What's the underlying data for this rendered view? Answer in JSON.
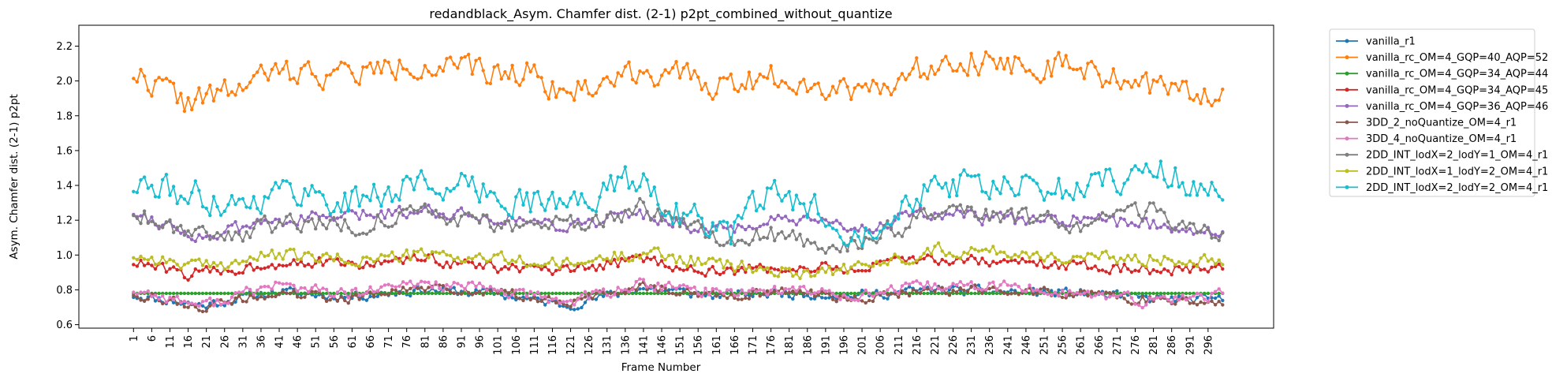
{
  "chart_data": {
    "type": "line",
    "title": "redandblack_Asym. Chamfer dist. (2-1) p2pt_combined_without_quantize",
    "xlabel": "Frame Number",
    "ylabel": "Asym. Chamfer dist. (2-1) p2pt",
    "x_range": [
      1,
      300
    ],
    "ylim": [
      0.6,
      2.3
    ],
    "yticks": [
      0.6,
      0.8,
      1.0,
      1.2,
      1.4,
      1.6,
      1.8,
      2.0,
      2.2
    ],
    "xticks": [
      1,
      6,
      11,
      16,
      21,
      26,
      31,
      36,
      41,
      46,
      51,
      56,
      61,
      66,
      71,
      76,
      81,
      86,
      91,
      96,
      101,
      106,
      111,
      116,
      121,
      126,
      131,
      136,
      141,
      146,
      151,
      156,
      161,
      166,
      171,
      176,
      181,
      186,
      191,
      196,
      201,
      206,
      211,
      216,
      221,
      226,
      231,
      236,
      241,
      246,
      251,
      256,
      261,
      266,
      271,
      276,
      281,
      286,
      291,
      296
    ],
    "grid": false,
    "legend_position": "outside-right",
    "series": [
      {
        "name": "vanilla_r1",
        "color": "#1f77b4",
        "base": [
          [
            1,
            0.77
          ],
          [
            20,
            0.71
          ],
          [
            40,
            0.79
          ],
          [
            60,
            0.76
          ],
          [
            80,
            0.8
          ],
          [
            100,
            0.78
          ],
          [
            120,
            0.71
          ],
          [
            140,
            0.81
          ],
          [
            160,
            0.77
          ],
          [
            180,
            0.78
          ],
          [
            200,
            0.77
          ],
          [
            220,
            0.8
          ],
          [
            240,
            0.79
          ],
          [
            260,
            0.78
          ],
          [
            280,
            0.75
          ],
          [
            300,
            0.74
          ]
        ],
        "noise": 0.025,
        "seed": 11
      },
      {
        "name": "vanilla_rc_OM=4_GQP=40_AQP=52",
        "color": "#ff7f0e",
        "base": [
          [
            1,
            2.05
          ],
          [
            10,
            1.95
          ],
          [
            15,
            1.88
          ],
          [
            25,
            1.92
          ],
          [
            40,
            2.05
          ],
          [
            60,
            2.04
          ],
          [
            80,
            2.1
          ],
          [
            100,
            2.04
          ],
          [
            110,
            2.06
          ],
          [
            120,
            1.92
          ],
          [
            140,
            2.07
          ],
          [
            160,
            1.98
          ],
          [
            180,
            2.03
          ],
          [
            195,
            1.95
          ],
          [
            210,
            2.0
          ],
          [
            225,
            2.14
          ],
          [
            240,
            2.1
          ],
          [
            260,
            2.07
          ],
          [
            280,
            1.97
          ],
          [
            290,
            1.92
          ],
          [
            300,
            1.95
          ]
        ],
        "noise": 0.07,
        "seed": 22
      },
      {
        "name": "vanilla_rc_OM=4_GQP=34_AQP=44",
        "color": "#2ca02c",
        "base": [
          [
            1,
            0.78
          ],
          [
            300,
            0.78
          ]
        ],
        "noise": 0.0,
        "seed": 33
      },
      {
        "name": "vanilla_rc_OM=4_GQP=34_AQP=45",
        "color": "#d62728",
        "base": [
          [
            1,
            0.96
          ],
          [
            15,
            0.89
          ],
          [
            30,
            0.92
          ],
          [
            45,
            0.97
          ],
          [
            60,
            0.94
          ],
          [
            80,
            0.98
          ],
          [
            100,
            0.93
          ],
          [
            120,
            0.9
          ],
          [
            140,
            0.98
          ],
          [
            160,
            0.9
          ],
          [
            180,
            0.93
          ],
          [
            200,
            0.92
          ],
          [
            220,
            0.98
          ],
          [
            240,
            0.96
          ],
          [
            260,
            0.94
          ],
          [
            280,
            0.92
          ],
          [
            300,
            0.92
          ]
        ],
        "noise": 0.03,
        "seed": 44
      },
      {
        "name": "vanilla_rc_OM=4_GQP=36_AQP=46",
        "color": "#9467bd",
        "base": [
          [
            1,
            1.25
          ],
          [
            20,
            1.1
          ],
          [
            40,
            1.2
          ],
          [
            60,
            1.22
          ],
          [
            80,
            1.26
          ],
          [
            100,
            1.22
          ],
          [
            120,
            1.17
          ],
          [
            140,
            1.24
          ],
          [
            160,
            1.14
          ],
          [
            180,
            1.2
          ],
          [
            200,
            1.15
          ],
          [
            220,
            1.24
          ],
          [
            240,
            1.2
          ],
          [
            260,
            1.2
          ],
          [
            280,
            1.18
          ],
          [
            300,
            1.13
          ]
        ],
        "noise": 0.035,
        "seed": 55
      },
      {
        "name": "3DD_2_noQuantize_OM=4_r1",
        "color": "#8c564b",
        "base": [
          [
            1,
            0.78
          ],
          [
            20,
            0.7
          ],
          [
            40,
            0.78
          ],
          [
            60,
            0.75
          ],
          [
            80,
            0.81
          ],
          [
            100,
            0.79
          ],
          [
            120,
            0.72
          ],
          [
            140,
            0.82
          ],
          [
            160,
            0.77
          ],
          [
            180,
            0.79
          ],
          [
            200,
            0.75
          ],
          [
            220,
            0.8
          ],
          [
            240,
            0.8
          ],
          [
            260,
            0.78
          ],
          [
            280,
            0.74
          ],
          [
            300,
            0.74
          ]
        ],
        "noise": 0.025,
        "seed": 66
      },
      {
        "name": "3DD_4_noQuantize_OM=4_r1",
        "color": "#e377c2",
        "base": [
          [
            1,
            0.8
          ],
          [
            20,
            0.71
          ],
          [
            40,
            0.83
          ],
          [
            60,
            0.77
          ],
          [
            80,
            0.84
          ],
          [
            100,
            0.8
          ],
          [
            120,
            0.73
          ],
          [
            140,
            0.83
          ],
          [
            160,
            0.79
          ],
          [
            180,
            0.8
          ],
          [
            200,
            0.77
          ],
          [
            220,
            0.82
          ],
          [
            240,
            0.82
          ],
          [
            260,
            0.78
          ],
          [
            280,
            0.73
          ],
          [
            300,
            0.78
          ]
        ],
        "noise": 0.03,
        "seed": 77
      },
      {
        "name": "2DD_INT_lodX=2_lodY=1_OM=4_r1",
        "color": "#7f7f7f",
        "base": [
          [
            1,
            1.25
          ],
          [
            15,
            1.15
          ],
          [
            30,
            1.12
          ],
          [
            45,
            1.2
          ],
          [
            60,
            1.17
          ],
          [
            80,
            1.24
          ],
          [
            100,
            1.18
          ],
          [
            120,
            1.16
          ],
          [
            140,
            1.27
          ],
          [
            160,
            1.1
          ],
          [
            180,
            1.12
          ],
          [
            190,
            1.0
          ],
          [
            200,
            1.08
          ],
          [
            220,
            1.22
          ],
          [
            240,
            1.22
          ],
          [
            260,
            1.18
          ],
          [
            280,
            1.25
          ],
          [
            290,
            1.12
          ],
          [
            300,
            1.12
          ]
        ],
        "noise": 0.05,
        "seed": 88
      },
      {
        "name": "2DD_INT_lodX=1_lodY=2_OM=4_r1",
        "color": "#bcbd22",
        "base": [
          [
            1,
            1.0
          ],
          [
            20,
            0.93
          ],
          [
            40,
            1.0
          ],
          [
            60,
            0.97
          ],
          [
            80,
            1.0
          ],
          [
            100,
            0.98
          ],
          [
            120,
            0.94
          ],
          [
            140,
            1.02
          ],
          [
            160,
            0.95
          ],
          [
            180,
            0.9
          ],
          [
            200,
            0.92
          ],
          [
            220,
            1.03
          ],
          [
            240,
            1.02
          ],
          [
            260,
            0.98
          ],
          [
            280,
            0.98
          ],
          [
            300,
            0.98
          ]
        ],
        "noise": 0.035,
        "seed": 99
      },
      {
        "name": "2DD_INT_lodX=2_lodY=2_OM=4_r1",
        "color": "#17becf",
        "base": [
          [
            1,
            1.4
          ],
          [
            15,
            1.35
          ],
          [
            30,
            1.3
          ],
          [
            45,
            1.38
          ],
          [
            60,
            1.3
          ],
          [
            80,
            1.42
          ],
          [
            100,
            1.35
          ],
          [
            120,
            1.28
          ],
          [
            140,
            1.45
          ],
          [
            150,
            1.25
          ],
          [
            165,
            1.12
          ],
          [
            175,
            1.35
          ],
          [
            190,
            1.25
          ],
          [
            200,
            1.12
          ],
          [
            220,
            1.42
          ],
          [
            240,
            1.38
          ],
          [
            260,
            1.38
          ],
          [
            280,
            1.5
          ],
          [
            300,
            1.33
          ]
        ],
        "noise": 0.08,
        "seed": 111
      }
    ]
  }
}
